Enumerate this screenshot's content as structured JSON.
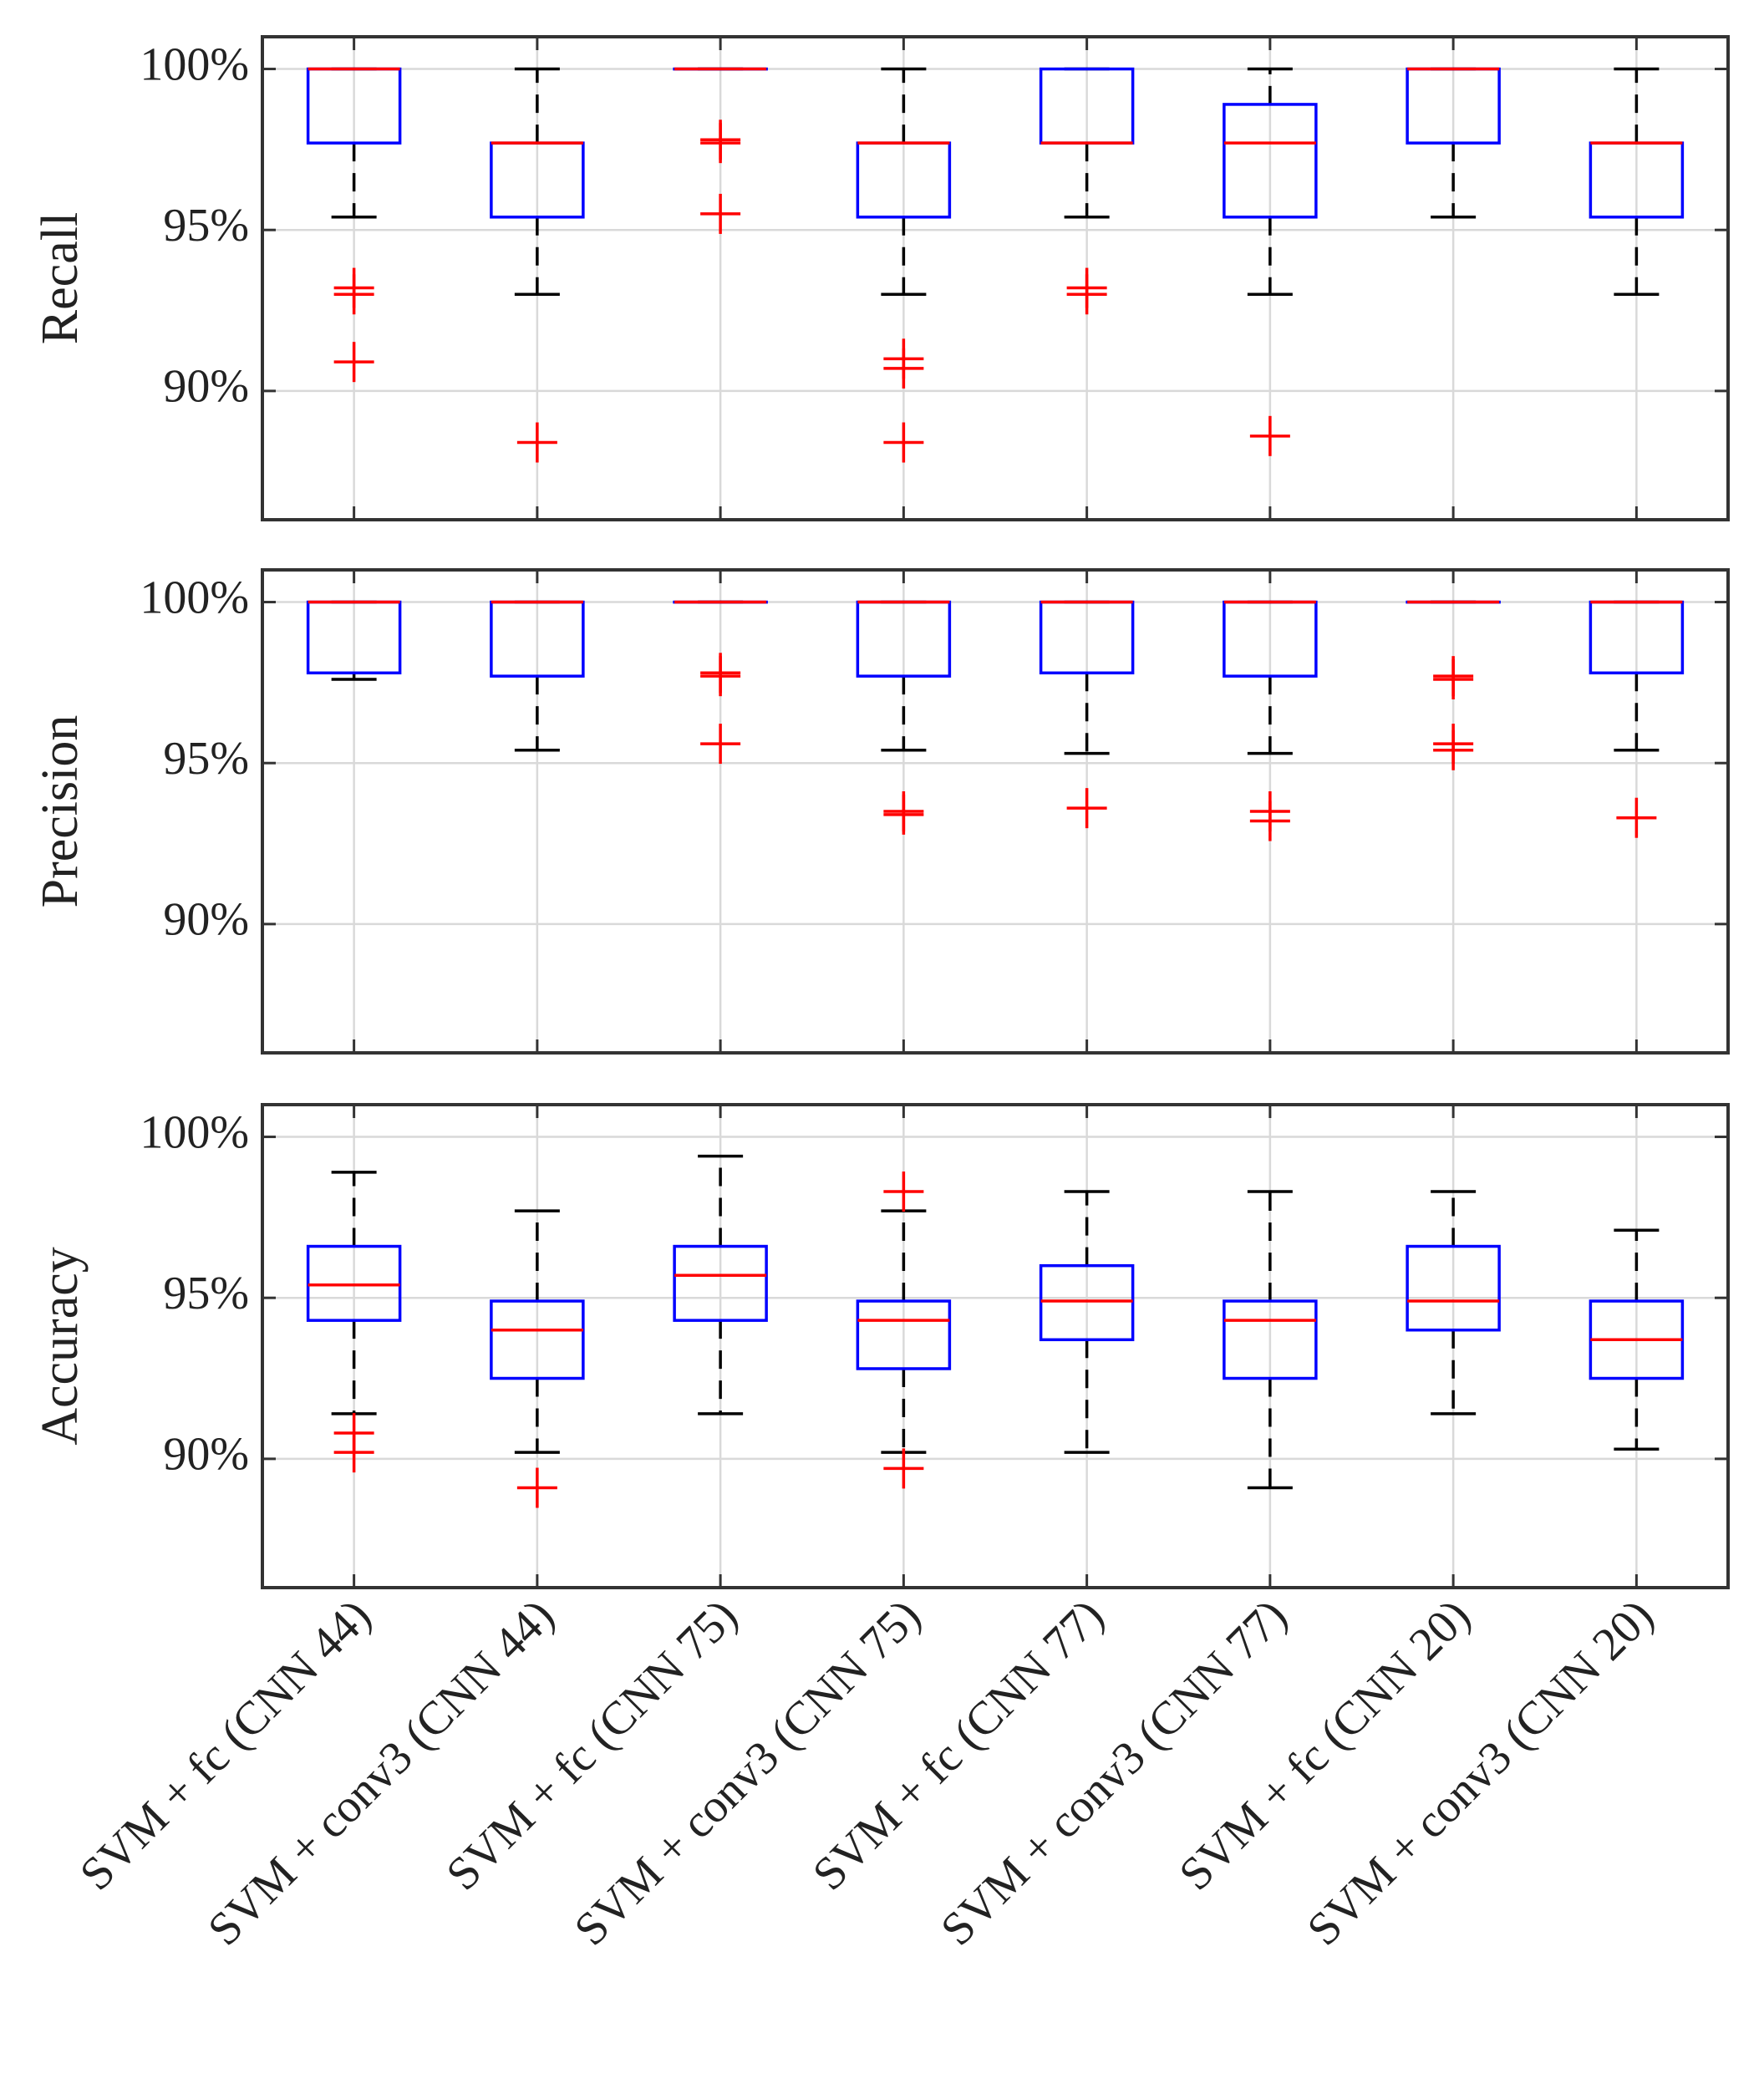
{
  "chart_data": {
    "type": "boxplot",
    "categories": [
      "SVM + fc (CNN 44)",
      "SVM + conv3 (CNN 44)",
      "SVM + fc (CNN 75)",
      "SVM + conv3 (CNN 75)",
      "SVM + fc (CNN 77)",
      "SVM + conv3 (CNN 77)",
      "SVM + fc (CNN 20)",
      "SVM + conv3 (CNN 20)"
    ],
    "yticks": [
      90,
      95,
      100
    ],
    "ytick_labels": [
      "90%",
      "95%",
      "100%"
    ],
    "colors": {
      "box": "#0000ff",
      "median": "#ff0000",
      "whisker": "#000000",
      "outlier": "#ff0000",
      "grid": "#d9d9d9",
      "axes": "#333333"
    },
    "panels": [
      {
        "ylabel": "Recall",
        "ylim": [
          86,
          101
        ],
        "boxes": [
          {
            "whislo": 95.4,
            "q1": 97.7,
            "med": 100,
            "q3": 100,
            "whishi": 100,
            "fliers": [
              93.0,
              93.2,
              90.9
            ]
          },
          {
            "whislo": 93.0,
            "q1": 95.4,
            "med": 97.7,
            "q3": 97.7,
            "whishi": 100,
            "fliers": [
              88.4
            ]
          },
          {
            "whislo": 100,
            "q1": 100,
            "med": 100,
            "q3": 100,
            "whishi": 100,
            "fliers": [
              97.7,
              97.8,
              95.5
            ]
          },
          {
            "whislo": 93.0,
            "q1": 95.4,
            "med": 97.7,
            "q3": 97.7,
            "whishi": 100,
            "fliers": [
              91.0,
              90.7,
              88.4
            ]
          },
          {
            "whislo": 95.4,
            "q1": 97.7,
            "med": 97.7,
            "q3": 100,
            "whishi": 100,
            "fliers": [
              93.2,
              93.0
            ]
          },
          {
            "whislo": 93.0,
            "q1": 95.4,
            "med": 97.7,
            "q3": 98.9,
            "whishi": 100,
            "fliers": [
              88.6
            ]
          },
          {
            "whislo": 95.4,
            "q1": 97.7,
            "med": 100,
            "q3": 100,
            "whishi": 100,
            "fliers": []
          },
          {
            "whislo": 93.0,
            "q1": 95.4,
            "med": 97.7,
            "q3": 97.7,
            "whishi": 100,
            "fliers": []
          }
        ]
      },
      {
        "ylabel": "Precision",
        "ylim": [
          86,
          101
        ],
        "boxes": [
          {
            "whislo": 97.6,
            "q1": 97.8,
            "med": 100,
            "q3": 100,
            "whishi": 100,
            "fliers": []
          },
          {
            "whislo": 95.4,
            "q1": 97.7,
            "med": 100,
            "q3": 100,
            "whishi": 100,
            "fliers": []
          },
          {
            "whislo": 100,
            "q1": 100,
            "med": 100,
            "q3": 100,
            "whishi": 100,
            "fliers": [
              97.7,
              97.8,
              95.6
            ]
          },
          {
            "whislo": 95.4,
            "q1": 97.7,
            "med": 100,
            "q3": 100,
            "whishi": 100,
            "fliers": [
              93.5,
              93.4
            ]
          },
          {
            "whislo": 95.3,
            "q1": 97.8,
            "med": 100,
            "q3": 100,
            "whishi": 100,
            "fliers": [
              93.6
            ]
          },
          {
            "whislo": 95.3,
            "q1": 97.7,
            "med": 100,
            "q3": 100,
            "whishi": 100,
            "fliers": [
              93.5,
              93.2
            ]
          },
          {
            "whislo": 100,
            "q1": 100,
            "med": 100,
            "q3": 100,
            "whishi": 100,
            "fliers": [
              97.7,
              97.6,
              95.6,
              95.4
            ]
          },
          {
            "whislo": 95.4,
            "q1": 97.8,
            "med": 100,
            "q3": 100,
            "whishi": 100,
            "fliers": [
              93.3
            ]
          }
        ]
      },
      {
        "ylabel": "Accuracy",
        "ylim": [
          86,
          101
        ],
        "boxes": [
          {
            "whislo": 91.4,
            "q1": 94.3,
            "med": 95.4,
            "q3": 96.6,
            "whishi": 98.9,
            "fliers": [
              90.8,
              90.2
            ]
          },
          {
            "whislo": 90.2,
            "q1": 92.5,
            "med": 94.0,
            "q3": 94.9,
            "whishi": 97.7,
            "fliers": [
              89.1
            ]
          },
          {
            "whislo": 91.4,
            "q1": 94.3,
            "med": 95.7,
            "q3": 96.6,
            "whishi": 99.4,
            "fliers": []
          },
          {
            "whislo": 90.2,
            "q1": 92.8,
            "med": 94.3,
            "q3": 94.9,
            "whishi": 97.7,
            "fliers": [
              98.3,
              89.7
            ]
          },
          {
            "whislo": 90.2,
            "q1": 93.7,
            "med": 94.9,
            "q3": 96.0,
            "whishi": 98.3,
            "fliers": []
          },
          {
            "whislo": 89.1,
            "q1": 92.5,
            "med": 94.3,
            "q3": 94.9,
            "whishi": 98.3,
            "fliers": []
          },
          {
            "whislo": 91.4,
            "q1": 94.0,
            "med": 94.9,
            "q3": 96.6,
            "whishi": 98.3,
            "fliers": []
          },
          {
            "whislo": 90.3,
            "q1": 92.5,
            "med": 93.7,
            "q3": 94.9,
            "whishi": 97.1,
            "fliers": []
          }
        ]
      }
    ]
  }
}
